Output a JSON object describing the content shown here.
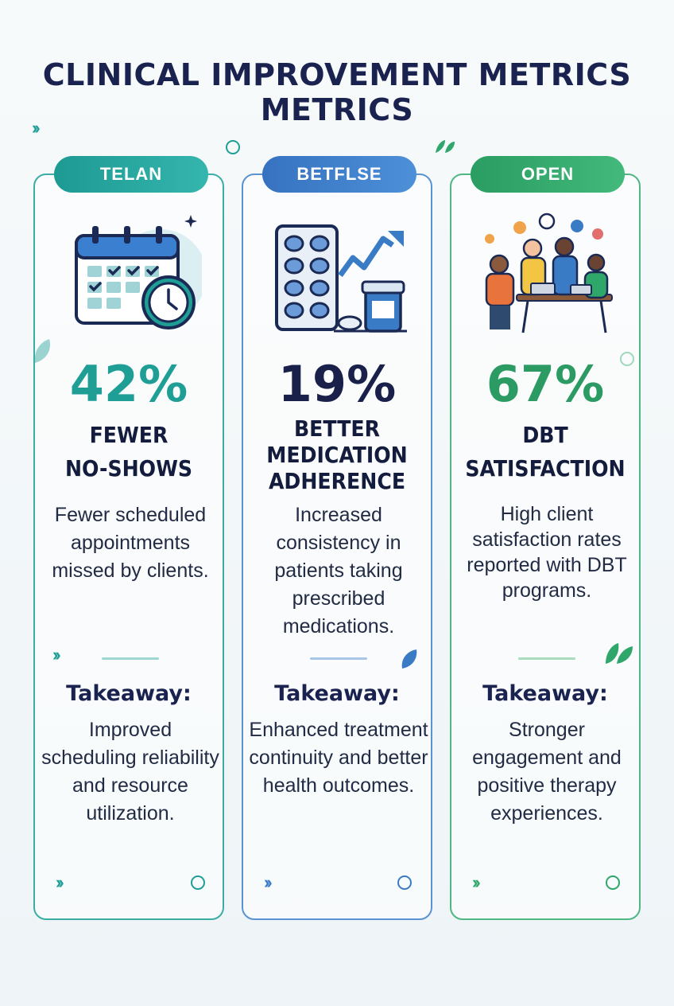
{
  "title": {
    "line1": "CLINICAL IMPROVEMENT METRICS",
    "line2": "METRICS"
  },
  "cards": [
    {
      "tag": "TELAN",
      "percent": "42%",
      "label_lines": [
        "FEWER",
        "NO-SHOWS"
      ],
      "description": "Fewer scheduled appointments missed by clients.",
      "takeaway_heading": "Takeaway:",
      "takeaway": "Improved scheduling reliability and resource utilization.",
      "illustration": "calendar-clock-icon",
      "color": "#1f9e96"
    },
    {
      "tag": "BETFLSE",
      "percent": "19%",
      "label_lines": [
        "BETTER",
        "MEDICATION",
        "ADHERENCE"
      ],
      "description": "Increased consistency in patients taking prescribed medications.",
      "takeaway_heading": "Takeaway:",
      "takeaway": "Enhanced treatment continuity and better health outcomes.",
      "illustration": "pills-growth-chart-icon",
      "color": "#3a7bc6"
    },
    {
      "tag": "OPEN",
      "percent": "67%",
      "label_lines": [
        "DBT",
        "SATISFACTION"
      ],
      "description": "High client satisfaction rates reported with DBT programs.",
      "takeaway_heading": "Takeaway:",
      "takeaway": "Stronger engagement and positive therapy experiences.",
      "illustration": "group-meeting-icon",
      "color": "#2fa66a"
    }
  ],
  "colors": {
    "title": "#1a2350",
    "teal": "#1f9e96",
    "blue": "#3a7bc6",
    "green": "#2fa66a"
  }
}
